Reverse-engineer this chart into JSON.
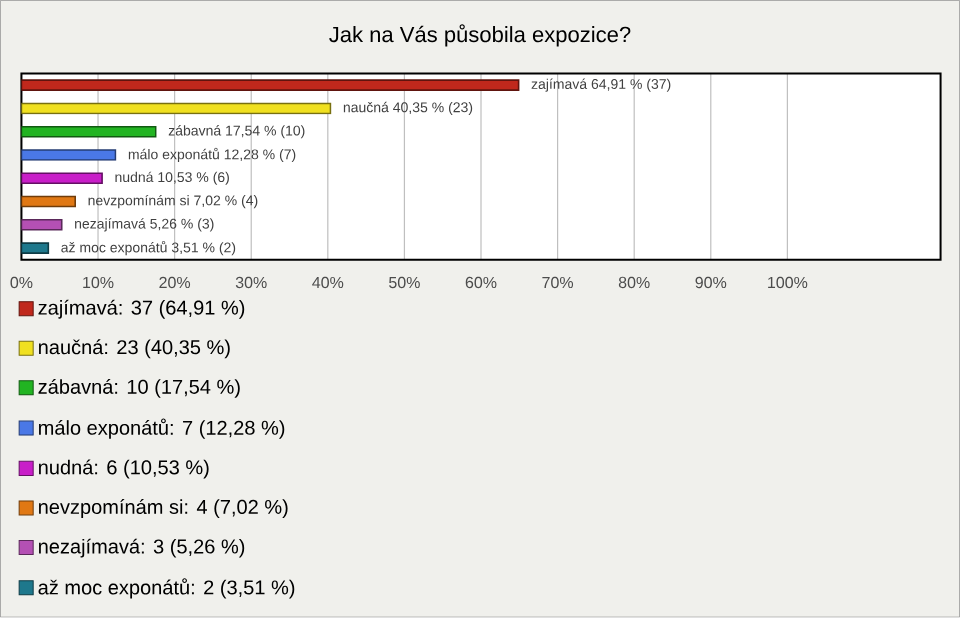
{
  "chart_data": {
    "type": "bar",
    "orientation": "horizontal",
    "title": "Jak na Vás působila expozice?",
    "categories": [
      null,
      null,
      null,
      null,
      null,
      null,
      null,
      null
    ],
    "series": [
      {
        "name": "zajímavá: 37 (64,91 %)",
        "color": "#c0281c",
        "values": [
          64.91,
          null,
          null,
          null,
          null,
          null,
          null,
          null
        ],
        "value_labels": [
          "zajímavá 64,91 % (37)",
          null,
          null,
          null,
          null,
          null,
          null,
          null
        ]
      },
      {
        "name": "naučná: 23 (40,35 %)",
        "color": "#f0e020",
        "values": [
          null,
          40.35,
          null,
          null,
          null,
          null,
          null,
          null
        ],
        "value_labels": [
          null,
          "naučná 40,35 % (23)",
          null,
          null,
          null,
          null,
          null,
          null
        ]
      },
      {
        "name": "zábavná: 10 (17,54 %)",
        "color": "#22b422",
        "values": [
          null,
          null,
          17.54,
          null,
          null,
          null,
          null,
          null
        ],
        "value_labels": [
          null,
          null,
          "zábavná 17,54 % (10)",
          null,
          null,
          null,
          null,
          null
        ]
      },
      {
        "name": "málo exponátů: 7 (12,28 %)",
        "color": "#4a78e6",
        "values": [
          null,
          null,
          null,
          12.28,
          null,
          null,
          null,
          null
        ],
        "value_labels": [
          null,
          null,
          null,
          "málo exponátů 12,28 % (7)",
          null,
          null,
          null,
          null
        ]
      },
      {
        "name": "nudná: 6 (10,53 %)",
        "color": "#c81ec8",
        "values": [
          null,
          null,
          null,
          null,
          10.53,
          null,
          null,
          null
        ],
        "value_labels": [
          null,
          null,
          null,
          null,
          "nudná 10,53 % (6)",
          null,
          null,
          null
        ]
      },
      {
        "name": "nevzpomínám si: 4 (7,02 %)",
        "color": "#e07814",
        "values": [
          null,
          null,
          null,
          null,
          null,
          7.02,
          null,
          null
        ],
        "value_labels": [
          null,
          null,
          null,
          null,
          null,
          "nevzpomínám si 7,02 % (4)",
          null,
          null
        ]
      },
      {
        "name": "nezajímavá: 3 (5,26 %)",
        "color": "#b450b4",
        "values": [
          null,
          null,
          null,
          null,
          null,
          null,
          5.26,
          null
        ],
        "value_labels": [
          null,
          null,
          null,
          null,
          null,
          null,
          "nezajímavá 5,26 % (3)",
          null
        ]
      },
      {
        "name": "až moc exponátů: 2 (3,51 %)",
        "color": "#1e788c",
        "values": [
          null,
          null,
          null,
          null,
          null,
          null,
          null,
          3.51
        ],
        "value_labels": [
          null,
          null,
          null,
          null,
          null,
          null,
          null,
          "až moc exponátů 3,51 % (2)"
        ]
      }
    ],
    "xlim": [
      0,
      120
    ],
    "xticks": [
      {
        "value": 0,
        "label": "0%"
      },
      {
        "value": 10,
        "label": "10%"
      },
      {
        "value": 20,
        "label": "20%"
      },
      {
        "value": 30,
        "label": "30%"
      },
      {
        "value": 40,
        "label": "40%"
      },
      {
        "value": 50,
        "label": "50%"
      },
      {
        "value": 60,
        "label": "60%"
      },
      {
        "value": 70,
        "label": "70%"
      },
      {
        "value": 80,
        "label": "80%"
      },
      {
        "value": 90,
        "label": "90%"
      },
      {
        "value": 100,
        "label": "100%"
      }
    ],
    "grid": "x",
    "legend": "bottom"
  }
}
